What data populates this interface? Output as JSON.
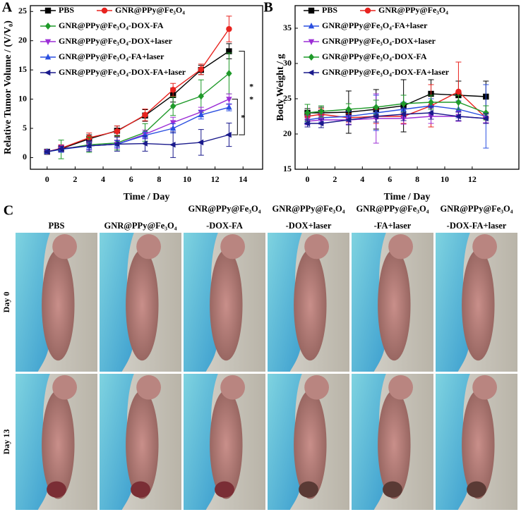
{
  "chart_data": [
    {
      "type": "line",
      "panel_label": "A",
      "x_label": "Time / Day",
      "y_label": "Relative Tumor Volume / (V/V₀)",
      "x": [
        0,
        1,
        3,
        5,
        7,
        9,
        11,
        13
      ],
      "xlim": [
        -1.2,
        15.4
      ],
      "xticks": [
        0,
        2,
        4,
        6,
        8,
        10,
        12,
        14
      ],
      "ylim": [
        -2,
        26
      ],
      "yticks": [
        0,
        5,
        10,
        15,
        20,
        25
      ],
      "annotations": [
        "*",
        "*",
        "*"
      ],
      "series": [
        {
          "name": "PBS",
          "color": "#000000",
          "marker": "square",
          "values": [
            1,
            1.5,
            3.2,
            4.6,
            7.2,
            10.7,
            15.0,
            18.2
          ],
          "errors": [
            0.2,
            0.5,
            0.7,
            0.8,
            1.0,
            1.2,
            0.8,
            1.3
          ]
        },
        {
          "name": "GNR@PPy@Fe₃O₄",
          "color": "#e8231f",
          "marker": "circle",
          "values": [
            1,
            1.6,
            3.4,
            4.5,
            7.3,
            11.6,
            15.1,
            22.0
          ],
          "errors": [
            0.2,
            0.6,
            0.8,
            0.9,
            1.0,
            1.1,
            0.9,
            2.2
          ]
        },
        {
          "name": "GNR@PPy@Fe₃O₄-DOX-FA",
          "color": "#1f9a2a",
          "marker": "diamond",
          "values": [
            1,
            1.4,
            2.2,
            2.5,
            4.3,
            8.8,
            10.5,
            14.4
          ],
          "errors": [
            0.2,
            1.6,
            1.3,
            1.2,
            1.5,
            1.6,
            2.8,
            3.5
          ]
        },
        {
          "name": "GNR@PPy@Fe₃O₄-DOX+laser",
          "color": "#9c2fd6",
          "marker": "triangle-down",
          "values": [
            1,
            1.5,
            2.0,
            2.3,
            4.0,
            6.0,
            7.8,
            10.0
          ],
          "errors": [
            0.2,
            0.6,
            0.7,
            0.7,
            0.7,
            0.9,
            0.8,
            0.9
          ]
        },
        {
          "name": "GNR@PPy@Fe₃O₄-FA+laser",
          "color": "#2a4fe0",
          "marker": "triangle-up",
          "values": [
            1,
            1.4,
            2.0,
            2.3,
            3.8,
            5.0,
            7.3,
            8.6
          ],
          "errors": [
            0.2,
            0.5,
            0.6,
            0.6,
            0.6,
            0.8,
            0.7,
            0.6
          ]
        },
        {
          "name": "GNR@PPy@Fe₃O₄-DOX-FA+laser",
          "color": "#1a1a8c",
          "marker": "triangle-left",
          "values": [
            1,
            1.5,
            2.0,
            2.3,
            2.4,
            2.2,
            2.6,
            3.9
          ],
          "errors": [
            0.2,
            0.4,
            0.9,
            1.2,
            1.3,
            2.2,
            2.2,
            2.0
          ]
        }
      ]
    },
    {
      "type": "line",
      "panel_label": "B",
      "x_label": "Time / Day",
      "y_label": "Body Weight / g",
      "x": [
        0,
        1,
        3,
        5,
        7,
        9,
        11,
        13
      ],
      "xlim": [
        -0.9,
        15.4
      ],
      "xticks": [
        0,
        2,
        4,
        6,
        8,
        10,
        12
      ],
      "ylim": [
        15,
        38.2
      ],
      "yticks": [
        15,
        20,
        25,
        30,
        35
      ],
      "series": [
        {
          "name": "PBS",
          "color": "#000000",
          "marker": "square",
          "values": [
            23.0,
            23.0,
            23.1,
            23.5,
            24.0,
            25.7,
            25.5,
            25.3
          ],
          "errors": [
            0.6,
            0.8,
            3.0,
            2.8,
            3.7,
            2.0,
            2.0,
            2.2
          ]
        },
        {
          "name": "GNR@PPy@Fe₃O₄",
          "color": "#e8231f",
          "marker": "circle",
          "values": [
            22.5,
            22.8,
            22.3,
            22.5,
            22.5,
            24.0,
            26.0,
            22.3
          ],
          "errors": [
            0.5,
            0.8,
            0.6,
            1.0,
            1.0,
            3.0,
            4.2,
            0.8
          ]
        },
        {
          "name": "GNR@PPy@Fe₃O₄-FA+laser",
          "color": "#2a4fe0",
          "marker": "triangle-up",
          "values": [
            22.0,
            22.3,
            22.5,
            23.0,
            23.5,
            24.0,
            23.5,
            22.5
          ],
          "errors": [
            0.6,
            0.6,
            0.7,
            2.5,
            1.0,
            1.0,
            1.2,
            4.5
          ]
        },
        {
          "name": "GNR@PPy@Fe₃O₄-DOX+laser",
          "color": "#9c2fd6",
          "marker": "triangle-down",
          "values": [
            21.8,
            22.0,
            22.0,
            22.2,
            22.2,
            22.5,
            22.5,
            22.2
          ],
          "errors": [
            0.5,
            0.6,
            0.6,
            3.5,
            0.8,
            1.0,
            0.7,
            0.6
          ]
        },
        {
          "name": "GNR@PPy@Fe₃O₄-DOX-FA",
          "color": "#1f9a2a",
          "marker": "diamond",
          "values": [
            23.0,
            23.2,
            23.5,
            23.8,
            24.3,
            24.5,
            24.5,
            23.0
          ],
          "errors": [
            1.2,
            0.8,
            0.8,
            1.0,
            1.2,
            1.0,
            1.0,
            1.0
          ]
        },
        {
          "name": "GNR@PPy@Fe₃O₄-DOX-FA+laser",
          "color": "#1a1a8c",
          "marker": "triangle-left",
          "values": [
            21.5,
            21.5,
            22.0,
            22.5,
            22.8,
            23.0,
            22.5,
            22.2
          ],
          "errors": [
            0.5,
            0.6,
            0.7,
            0.8,
            0.9,
            0.9,
            0.6,
            0.7
          ]
        }
      ]
    }
  ],
  "panel_c": {
    "label": "C",
    "columns": [
      [
        "PBS"
      ],
      [
        "GNR@PPy@Fe₃O₄"
      ],
      [
        "GNR@PPy@Fe₃O₄",
        "-DOX-FA"
      ],
      [
        "GNR@PPy@Fe₃O₄",
        "-DOX+laser"
      ],
      [
        "GNR@PPy@Fe₃O₄",
        "-FA+laser"
      ],
      [
        "GNR@PPy@Fe₃O₄",
        "-DOX-FA+laser"
      ]
    ],
    "rows": [
      "Day 0",
      "Day 13"
    ]
  }
}
